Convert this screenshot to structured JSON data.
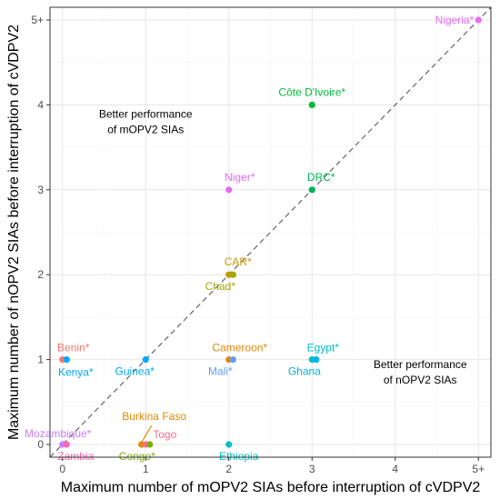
{
  "chart_data": {
    "type": "scatter",
    "xlabel": "Maximum number of mOPV2 SIAs before interruption of cVDPV2",
    "ylabel": "Maximum number of nOPV2 SIAs before interruption of cVDPV2",
    "x_ticks": [
      "0",
      "1",
      "2",
      "3",
      "4",
      "5+"
    ],
    "y_ticks": [
      "0",
      "1",
      "2",
      "3",
      "4",
      "5+"
    ],
    "xlim": [
      -0.15,
      5.15
    ],
    "ylim": [
      -0.15,
      5.15
    ],
    "grid": true,
    "diagonal_reference_line": true,
    "annotations": [
      {
        "text_lines": [
          "Better performance",
          "of mOPV2 SIAs"
        ],
        "x": 1.0,
        "y": 3.85
      },
      {
        "text_lines": [
          "Better performance",
          "of nOPV2 SIAs"
        ],
        "x": 4.3,
        "y": 0.9
      }
    ],
    "points": [
      {
        "label": "Nigeria*",
        "x": 5.0,
        "y": 5.0,
        "color": "#E76BF3"
      },
      {
        "label": "Côte D'Ivoire*",
        "x": 3.0,
        "y": 4.0,
        "color": "#00BA38"
      },
      {
        "label": "DRC*",
        "x": 3.0,
        "y": 3.0,
        "color": "#00B159"
      },
      {
        "label": "Niger*",
        "x": 2.0,
        "y": 3.0,
        "color": "#E76BF3"
      },
      {
        "label": "CAR*",
        "x": 2.0,
        "y": 2.0,
        "color": "#C49A00"
      },
      {
        "label": "Chad*",
        "x": 2.05,
        "y": 2.0,
        "color": "#A3A500"
      },
      {
        "label": "Benin*",
        "x": 0.0,
        "y": 1.0,
        "color": "#F8766D"
      },
      {
        "label": "Kenya*",
        "x": 0.05,
        "y": 1.0,
        "color": "#00A9FF"
      },
      {
        "label": "Guinea*",
        "x": 1.0,
        "y": 1.0,
        "color": "#00A9FF"
      },
      {
        "label": "Cameroon*",
        "x": 2.0,
        "y": 1.0,
        "color": "#E58700"
      },
      {
        "label": "Mali*",
        "x": 2.05,
        "y": 1.0,
        "color": "#619CFF"
      },
      {
        "label": "Egypt*",
        "x": 3.0,
        "y": 1.0,
        "color": "#00BFC4"
      },
      {
        "label": "Ghana",
        "x": 3.05,
        "y": 1.0,
        "color": "#00B4E4"
      },
      {
        "label": "Mozambique*",
        "x": 0.0,
        "y": 0.0,
        "color": "#C77CFF"
      },
      {
        "label": "Zambia",
        "x": 0.05,
        "y": 0.0,
        "color": "#FF64B0"
      },
      {
        "label": "Burkina Faso",
        "x": 0.95,
        "y": 0.0,
        "color": "#E58700"
      },
      {
        "label": "Togo",
        "x": 1.0,
        "y": 0.0,
        "color": "#FF6C91"
      },
      {
        "label": "Congo*",
        "x": 1.05,
        "y": 0.0,
        "color": "#7CAE00"
      },
      {
        "label": "Ethiopia",
        "x": 2.0,
        "y": 0.0,
        "color": "#00BFC4"
      }
    ]
  }
}
